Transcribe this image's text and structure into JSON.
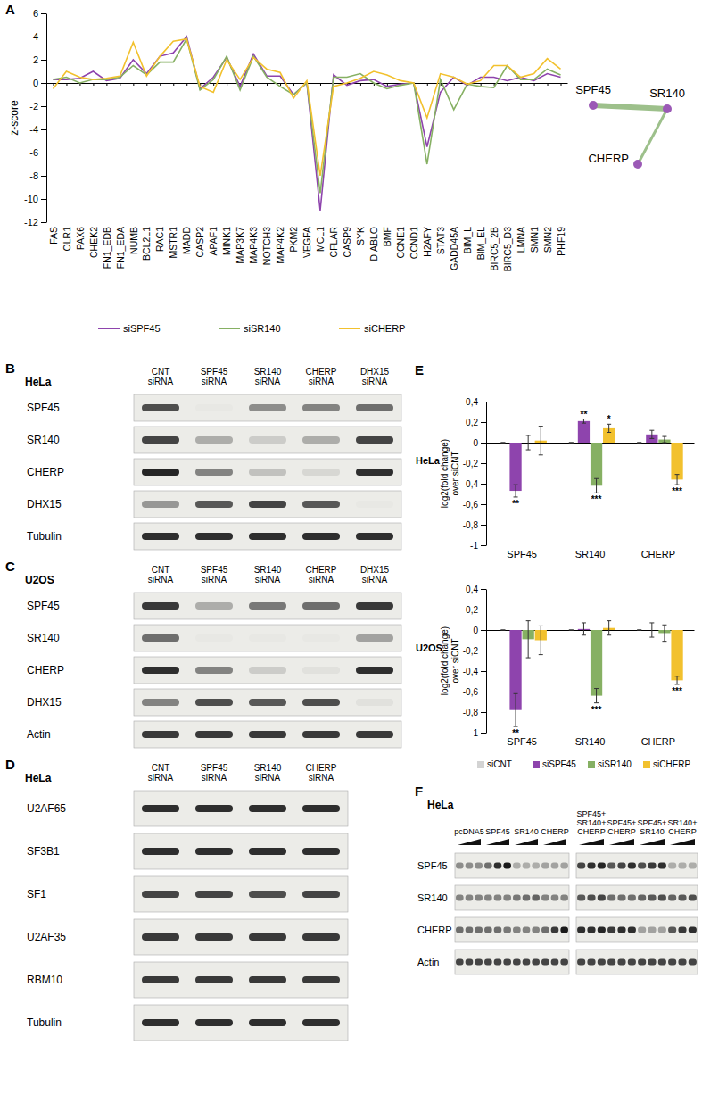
{
  "chart_data": [
    {
      "type": "line",
      "ylabel": "z-score",
      "categories": [
        "FAS",
        "OLR1",
        "PAX6",
        "CHEK2",
        "FN1_EDB",
        "FN1_EDA",
        "NUMB",
        "BCL2L1",
        "RAC1",
        "MSTR1",
        "MADD",
        "CASP2",
        "APAF1",
        "MINK1",
        "MAP3K7",
        "MAP4K3",
        "NOTCH3",
        "MAP4K2",
        "PKM2",
        "VEGFA",
        "MCL1",
        "CFLAR",
        "CASP9",
        "SYK",
        "DIABLO",
        "BMF",
        "CCNE1",
        "CCND1",
        "H2AFY",
        "STAT3",
        "GADD45A",
        "BIM_L",
        "BIM_EL",
        "BIRC5_2B",
        "BIRC5_D3",
        "LMNA",
        "SMN1",
        "SMN2",
        "PHF19"
      ],
      "ylim": [
        -12,
        6
      ],
      "yticks": [
        -12,
        -10,
        -8,
        -6,
        -4,
        -2,
        0,
        2,
        4,
        6
      ],
      "legend": "bottom",
      "series": [
        {
          "name": "siSPF45",
          "color": "#8e44ad",
          "values": [
            0.3,
            0.3,
            0.4,
            1.0,
            0.2,
            0.4,
            2.0,
            0.8,
            2.3,
            2.6,
            4.0,
            -0.5,
            0.5,
            2.2,
            -0.3,
            2.5,
            0.6,
            0.6,
            -1.0,
            0.0,
            -11.0,
            0.7,
            -0.2,
            0.2,
            0.3,
            -0.3,
            -0.1,
            0.0,
            -5.5,
            -0.8,
            0.5,
            -0.2,
            0.5,
            0.5,
            0.2,
            0.5,
            0.2,
            0.8,
            0.5
          ]
        },
        {
          "name": "siSR140",
          "color": "#86b063",
          "values": [
            0.3,
            0.5,
            0.0,
            0.3,
            0.3,
            0.5,
            1.5,
            0.7,
            1.8,
            1.8,
            3.8,
            -0.6,
            0.3,
            2.3,
            -0.6,
            2.3,
            0.5,
            -0.3,
            -1.0,
            0.0,
            -9.5,
            0.5,
            0.5,
            0.8,
            0.0,
            -0.5,
            -0.2,
            0.0,
            -7.0,
            0.3,
            -2.3,
            -0.1,
            -0.3,
            -0.4,
            1.5,
            0.3,
            0.3,
            1.2,
            0.7
          ]
        },
        {
          "name": "siCHERP",
          "color": "#f2c12e",
          "values": [
            -0.5,
            1.0,
            0.5,
            0.3,
            0.4,
            0.6,
            3.5,
            0.6,
            2.3,
            3.6,
            3.8,
            -0.3,
            -0.8,
            2.0,
            0.3,
            2.2,
            1.2,
            0.9,
            -1.3,
            0.2,
            -8.0,
            -0.3,
            0.0,
            0.4,
            1.0,
            0.7,
            0.2,
            0.0,
            -3.0,
            0.8,
            0.5,
            -0.1,
            0.2,
            1.5,
            1.5,
            0.5,
            0.8,
            2.1,
            1.2
          ]
        }
      ]
    },
    {
      "type": "bar",
      "title": "HeLa",
      "ylabel": [
        "log2(fold change)",
        "over siCNT"
      ],
      "categories": [
        "SPF45",
        "SR140",
        "CHERP"
      ],
      "ylim": [
        -1,
        0.4
      ],
      "yticks": [
        -1,
        {
          "value": -0.8,
          "label": "-0,8"
        },
        {
          "value": -0.6,
          "label": "-0,6"
        },
        {
          "value": -0.4,
          "label": "-0,4"
        },
        {
          "value": -0.2,
          "label": "-0,2"
        },
        0,
        {
          "value": 0.2,
          "label": "0,2"
        },
        {
          "value": 0.4,
          "label": "0,4"
        }
      ],
      "series": [
        {
          "name": "siCNT",
          "color": "#d3d3d3",
          "values": [
            0,
            0,
            0
          ],
          "errors": [
            0,
            0,
            0
          ],
          "significance": [
            null,
            null,
            null
          ]
        },
        {
          "name": "siSPF45",
          "color": "#8e44ad",
          "values": [
            -0.47,
            0.21,
            0.08
          ],
          "errors": [
            0.06,
            0.02,
            0.04
          ],
          "significance": [
            "**",
            "**",
            null
          ]
        },
        {
          "name": "siSR140",
          "color": "#86b063",
          "values": [
            0,
            -0.42,
            0.03
          ],
          "errors": [
            0.07,
            0.07,
            0.03
          ],
          "significance": [
            null,
            "***",
            null
          ]
        },
        {
          "name": "siCHERP",
          "color": "#f2c12e",
          "values": [
            0.02,
            0.14,
            -0.36
          ],
          "errors": [
            0.14,
            0.04,
            0.05
          ],
          "significance": [
            null,
            "*",
            "***"
          ]
        }
      ]
    },
    {
      "type": "bar",
      "title": "U2OS",
      "ylabel": [
        "log2(fold change)",
        "over siCNT"
      ],
      "categories": [
        "SPF45",
        "SR140",
        "CHERP"
      ],
      "ylim": [
        -1,
        0.4
      ],
      "yticks": [
        -1,
        {
          "value": -0.8,
          "label": "-0,8"
        },
        {
          "value": -0.6,
          "label": "-0,6"
        },
        {
          "value": -0.4,
          "label": "-0,4"
        },
        {
          "value": -0.2,
          "label": "-0,2"
        },
        0,
        {
          "value": 0.2,
          "label": "0,2"
        },
        {
          "value": 0.4,
          "label": "0,4"
        }
      ],
      "legend": "bottom",
      "series": [
        {
          "name": "siCNT",
          "color": "#d3d3d3",
          "values": [
            0,
            0,
            0
          ],
          "errors": [
            0,
            0,
            0
          ],
          "significance": [
            null,
            null,
            null
          ]
        },
        {
          "name": "siSPF45",
          "color": "#8e44ad",
          "values": [
            -0.78,
            0.01,
            0
          ],
          "errors": [
            0.16,
            0.06,
            0.07
          ],
          "significance": [
            "**",
            null,
            null
          ]
        },
        {
          "name": "siSR140",
          "color": "#86b063",
          "values": [
            -0.09,
            -0.64,
            -0.03
          ],
          "errors": [
            0.18,
            0.07,
            0.08
          ],
          "significance": [
            null,
            "***",
            null
          ]
        },
        {
          "name": "siCHERP",
          "color": "#f2c12e",
          "values": [
            -0.1,
            0.02,
            -0.49
          ],
          "errors": [
            0.14,
            0.07,
            0.04
          ],
          "significance": [
            null,
            null,
            "***"
          ]
        }
      ]
    }
  ],
  "panels": {
    "A": {
      "label": "A",
      "network": {
        "nodes": [
          "SPF45",
          "SR140",
          "CHERP"
        ],
        "edges": [
          {
            "source": "SPF45",
            "target": "SR140",
            "weight": 2
          },
          {
            "source": "SR140",
            "target": "CHERP",
            "weight": 1
          }
        ]
      }
    },
    "B": {
      "label": "B",
      "cell_line": "HeLa",
      "lanes": [
        [
          "CNT",
          "siRNA"
        ],
        [
          "SPF45",
          "siRNA"
        ],
        [
          "SR140",
          "siRNA"
        ],
        [
          "CHERP",
          "siRNA"
        ],
        [
          "DHX15",
          "siRNA"
        ]
      ],
      "rows": [
        {
          "protein": "SPF45",
          "intensity": [
            0.75,
            0.02,
            0.45,
            0.5,
            0.6
          ]
        },
        {
          "protein": "SR140",
          "intensity": [
            0.8,
            0.3,
            0.15,
            0.3,
            0.8
          ]
        },
        {
          "protein": "CHERP",
          "intensity": [
            0.95,
            0.5,
            0.2,
            0.1,
            0.9
          ]
        },
        {
          "protein": "DHX15",
          "intensity": [
            0.4,
            0.7,
            0.8,
            0.7,
            0.02
          ]
        },
        {
          "protein": "Tubulin",
          "intensity": [
            0.9,
            0.9,
            0.9,
            0.9,
            0.9
          ]
        }
      ]
    },
    "C": {
      "label": "C",
      "cell_line": "U2OS",
      "lanes": [
        [
          "CNT",
          "siRNA"
        ],
        [
          "SPF45",
          "siRNA"
        ],
        [
          "SR140",
          "siRNA"
        ],
        [
          "CHERP",
          "siRNA"
        ],
        [
          "DHX15",
          "siRNA"
        ]
      ],
      "rows": [
        {
          "protein": "SPF45",
          "intensity": [
            0.85,
            0.3,
            0.55,
            0.6,
            0.85
          ]
        },
        {
          "protein": "SR140",
          "intensity": [
            0.6,
            0.02,
            0.02,
            0.02,
            0.35
          ]
        },
        {
          "protein": "CHERP",
          "intensity": [
            0.9,
            0.5,
            0.15,
            0.05,
            0.9
          ]
        },
        {
          "protein": "DHX15",
          "intensity": [
            0.5,
            0.75,
            0.7,
            0.75,
            0.05
          ]
        },
        {
          "protein": "Actin",
          "intensity": [
            0.85,
            0.85,
            0.85,
            0.85,
            0.85
          ]
        }
      ]
    },
    "D": {
      "label": "D",
      "cell_line": "HeLa",
      "lanes": [
        [
          "CNT",
          "siRNA"
        ],
        [
          "SPF45",
          "siRNA"
        ],
        [
          "SR140",
          "siRNA"
        ],
        [
          "CHERP",
          "siRNA"
        ]
      ],
      "rows": [
        {
          "protein": "U2AF65",
          "intensity": [
            0.9,
            0.9,
            0.9,
            0.9
          ]
        },
        {
          "protein": "SF3B1",
          "intensity": [
            0.9,
            0.9,
            0.9,
            0.9
          ]
        },
        {
          "protein": "SF1",
          "intensity": [
            0.8,
            0.8,
            0.75,
            0.8
          ]
        },
        {
          "protein": "U2AF35",
          "intensity": [
            0.85,
            0.85,
            0.85,
            0.85
          ]
        },
        {
          "protein": "RBM10",
          "intensity": [
            0.85,
            0.85,
            0.85,
            0.85
          ]
        },
        {
          "protein": "Tubulin",
          "intensity": [
            0.9,
            0.9,
            0.9,
            0.9
          ]
        }
      ]
    },
    "E": {
      "label": "E"
    },
    "F": {
      "label": "F",
      "cell_line": "HeLa",
      "blots": [
        {
          "groups": [
            [
              "pcDNA5"
            ],
            [
              "SPF45"
            ],
            [
              "SR140"
            ],
            [
              "CHERP"
            ]
          ]
        },
        {
          "groups": [
            [
              "SPF45+",
              "SR140+",
              "CHERP"
            ],
            [
              "SPF45+",
              "CHERP"
            ],
            [
              "SPF45+",
              "SR140"
            ],
            [
              "SR140+",
              "CHERP"
            ]
          ]
        }
      ],
      "rows": [
        {
          "protein": "SPF45",
          "intensity": [
            [
              0.45,
              0.45,
              0.45,
              0.6,
              0.9,
              1.0,
              0.3,
              0.3,
              0.3,
              0.35,
              0.35,
              0.35
            ],
            [
              0.8,
              0.9,
              0.95,
              0.7,
              0.8,
              0.9,
              0.75,
              0.85,
              0.9,
              0.3,
              0.3,
              0.3
            ]
          ]
        },
        {
          "protein": "SR140",
          "intensity": [
            [
              0.5,
              0.5,
              0.5,
              0.5,
              0.5,
              0.5,
              0.55,
              0.6,
              0.65,
              0.5,
              0.5,
              0.5
            ],
            [
              0.7,
              0.75,
              0.8,
              0.6,
              0.6,
              0.6,
              0.65,
              0.7,
              0.75,
              0.65,
              0.7,
              0.75
            ]
          ]
        },
        {
          "protein": "CHERP",
          "intensity": [
            [
              0.6,
              0.6,
              0.6,
              0.6,
              0.6,
              0.55,
              0.5,
              0.5,
              0.5,
              0.6,
              0.85,
              1.0
            ],
            [
              0.9,
              0.9,
              0.95,
              0.85,
              0.9,
              0.9,
              0.35,
              0.35,
              0.35,
              0.7,
              0.85,
              0.9
            ]
          ]
        },
        {
          "protein": "Actin",
          "intensity": [
            [
              0.8,
              0.8,
              0.8,
              0.8,
              0.8,
              0.8,
              0.8,
              0.8,
              0.8,
              0.8,
              0.8,
              0.8
            ],
            [
              0.8,
              0.8,
              0.8,
              0.8,
              0.8,
              0.8,
              0.8,
              0.8,
              0.8,
              0.8,
              0.8,
              0.8
            ]
          ]
        }
      ]
    }
  }
}
